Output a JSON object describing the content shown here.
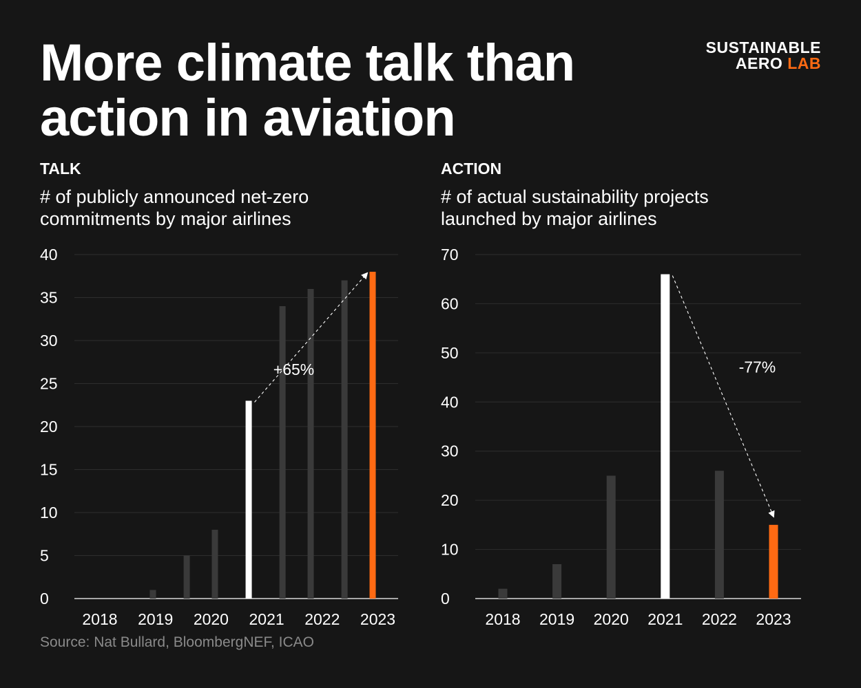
{
  "title": {
    "line1": "More climate talk than",
    "line2": "action in aviation"
  },
  "logo": {
    "line1": "SUSTAINABLE",
    "line2_a": "AERO",
    "line2_b": "LAB",
    "accent_color": "#ff6a13"
  },
  "source": "Source: Nat Bullard, BloombergNEF, ICAO",
  "colors": {
    "background": "#161616",
    "bar_default": "#3a3a3a",
    "bar_highlight": "#ffffff",
    "bar_accent": "#ff6a13"
  },
  "chart_data": [
    {
      "type": "bar",
      "label": "TALK",
      "subtitle_line1": "# of publicly announced net-zero",
      "subtitle_line2": "commitments by major airlines",
      "x_tick_labels": [
        "2018",
        "2019",
        "2020",
        "2021",
        "2022",
        "2023"
      ],
      "ylim": [
        0,
        40
      ],
      "yticks": [
        0,
        5,
        10,
        15,
        20,
        25,
        30,
        35,
        40
      ],
      "grid": true,
      "bars": [
        {
          "x": 2018.5,
          "value": 1,
          "highlight": "none"
        },
        {
          "x": 2019.1,
          "value": 5,
          "highlight": "none"
        },
        {
          "x": 2019.6,
          "value": 8,
          "highlight": "none"
        },
        {
          "x": 2020.2,
          "value": 23,
          "highlight": "white"
        },
        {
          "x": 2020.8,
          "value": 34,
          "highlight": "none"
        },
        {
          "x": 2021.3,
          "value": 36,
          "highlight": "none"
        },
        {
          "x": 2021.9,
          "value": 37,
          "highlight": "none"
        },
        {
          "x": 2022.4,
          "value": 38,
          "highlight": "accent"
        }
      ],
      "annotation": {
        "text": "+65%",
        "from_bar": 3,
        "to_bar": 7,
        "text_x": 2021.0,
        "text_y": 26
      }
    },
    {
      "type": "bar",
      "label": "ACTION",
      "subtitle_line1": "# of actual sustainability projects",
      "subtitle_line2": "launched by major airlines",
      "x_tick_labels": [
        "2018",
        "2019",
        "2020",
        "2021",
        "2022",
        "2023"
      ],
      "ylim": [
        0,
        70
      ],
      "yticks": [
        0,
        10,
        20,
        30,
        40,
        50,
        60,
        70
      ],
      "grid": true,
      "bars": [
        {
          "x": 2018,
          "value": 2,
          "highlight": "none"
        },
        {
          "x": 2019,
          "value": 7,
          "highlight": "none"
        },
        {
          "x": 2020,
          "value": 25,
          "highlight": "none"
        },
        {
          "x": 2021,
          "value": 66,
          "highlight": "white"
        },
        {
          "x": 2022,
          "value": 26,
          "highlight": "none"
        },
        {
          "x": 2023,
          "value": 15,
          "highlight": "accent"
        }
      ],
      "annotation": {
        "text": "-77%",
        "from_bar": 3,
        "to_bar": 5,
        "text_x": 2022.7,
        "text_y": 46
      }
    }
  ]
}
